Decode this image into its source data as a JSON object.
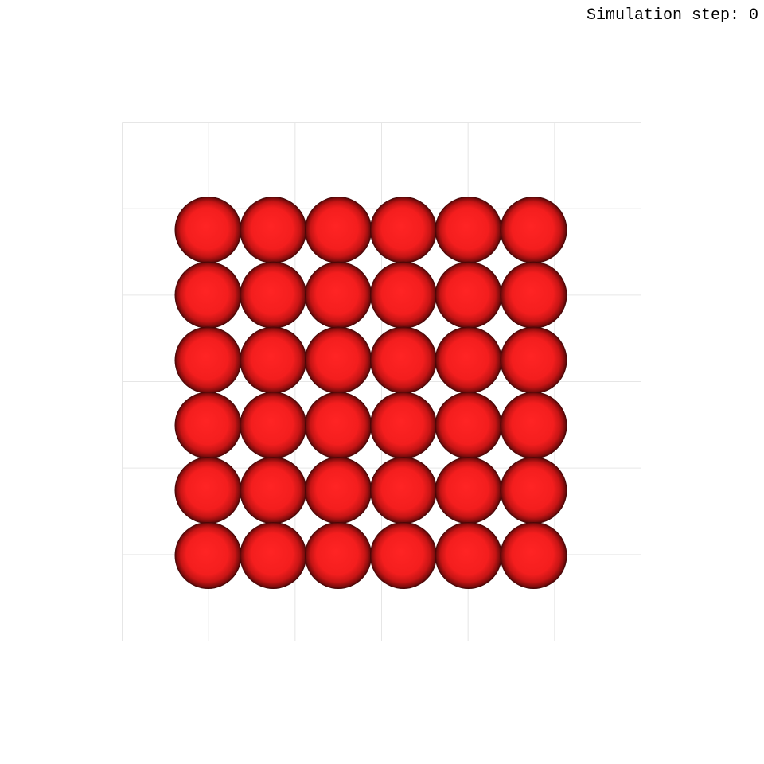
{
  "hud": {
    "step_prefix": "Simulation step:",
    "step_value": "0"
  },
  "simulation": {
    "box_grid_divisions": 6,
    "particle_grid": {
      "rows": 6,
      "cols": 6
    },
    "particle_color": "#ff2020",
    "grid_line_color": "#e6e6e6",
    "background_color": "#ffffff"
  }
}
